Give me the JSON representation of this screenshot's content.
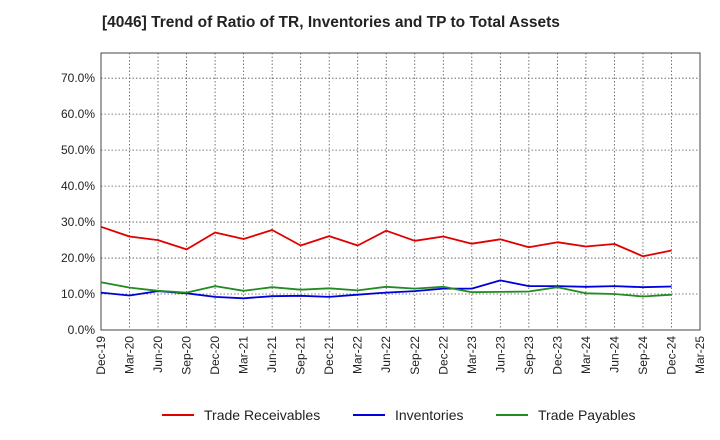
{
  "chart_data": {
    "type": "line",
    "title": "[4046]  Trend of Ratio of TR, Inventories and TP to Total Assets",
    "x_tick_labels": [
      "Dec-19",
      "Mar-20",
      "Jun-20",
      "Sep-20",
      "Dec-20",
      "Mar-21",
      "Jun-21",
      "Sep-21",
      "Dec-21",
      "Mar-22",
      "Jun-22",
      "Sep-22",
      "Dec-22",
      "Mar-23",
      "Jun-23",
      "Sep-23",
      "Dec-23",
      "Mar-24",
      "Jun-24",
      "Sep-24",
      "Dec-24",
      "Mar-25"
    ],
    "x": [
      "Dec-19",
      "Mar-20",
      "Jun-20",
      "Sep-20",
      "Dec-20",
      "Mar-21",
      "Jun-21",
      "Sep-21",
      "Dec-21",
      "Mar-22",
      "Jun-22",
      "Sep-22",
      "Dec-22",
      "Mar-23",
      "Jun-23",
      "Sep-23",
      "Dec-23",
      "Mar-24",
      "Jun-24",
      "Sep-24",
      "Dec-24"
    ],
    "y_ticks": [
      0,
      10,
      20,
      30,
      40,
      50,
      60,
      70
    ],
    "y_tick_labels": [
      "0.0%",
      "10.0%",
      "20.0%",
      "30.0%",
      "40.0%",
      "50.0%",
      "60.0%",
      "70.0%"
    ],
    "ylim": [
      0,
      77
    ],
    "grid": true,
    "legend_position": "bottom",
    "series": [
      {
        "name": "Trade Receivables",
        "color": "#e00000",
        "values": [
          28.7,
          26.0,
          25.0,
          22.4,
          27.1,
          25.3,
          27.8,
          23.5,
          26.1,
          23.5,
          27.6,
          24.8,
          26.0,
          24.0,
          25.2,
          23.0,
          24.4,
          23.2,
          23.9,
          20.5,
          22.1
        ]
      },
      {
        "name": "Inventories",
        "color": "#0000dd",
        "values": [
          10.4,
          9.6,
          10.8,
          10.2,
          9.2,
          8.8,
          9.4,
          9.5,
          9.2,
          9.8,
          10.4,
          10.8,
          11.5,
          11.5,
          13.8,
          12.2,
          12.2,
          12.0,
          12.2,
          11.9,
          12.1
        ]
      },
      {
        "name": "Trade Payables",
        "color": "#228b22",
        "values": [
          13.3,
          11.8,
          10.9,
          10.4,
          12.2,
          10.9,
          11.9,
          11.2,
          11.6,
          11.0,
          12.0,
          11.5,
          12.0,
          10.5,
          10.6,
          10.7,
          11.9,
          10.2,
          10.0,
          9.3,
          9.8
        ]
      }
    ]
  }
}
